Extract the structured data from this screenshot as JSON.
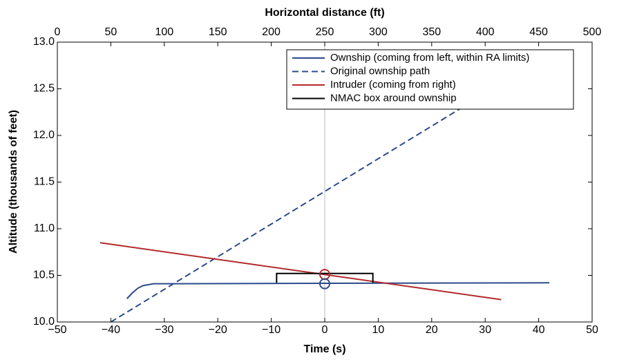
{
  "chart_data": {
    "type": "line",
    "xlabel": "Time (s)",
    "ylabel": "Altitude (thousands of feet)",
    "x2label": "Horizontal distance (ft)",
    "xlim": [
      -50,
      50
    ],
    "xticks": [
      {
        "value": -50,
        "label": "−50"
      },
      {
        "value": -40,
        "label": "−40"
      },
      {
        "value": -30,
        "label": "−30"
      },
      {
        "value": -20,
        "label": "−20"
      },
      {
        "value": -10,
        "label": "−10"
      },
      0,
      10,
      20,
      30,
      40,
      50
    ],
    "x2lim": [
      0,
      500
    ],
    "x2ticks": [
      0,
      50,
      100,
      150,
      200,
      250,
      300,
      350,
      400,
      450,
      500
    ],
    "ylim": [
      10.0,
      13.0
    ],
    "yticks": [
      {
        "value": 10.0,
        "label": "10.0"
      },
      10.5,
      {
        "value": 11.0,
        "label": "11.0"
      },
      11.5,
      {
        "value": 12.0,
        "label": "12.0"
      },
      12.5,
      {
        "value": 13.0,
        "label": "13.0"
      }
    ],
    "legend": "upper right",
    "series": [
      {
        "name": "Ownship (coming from left, within RA limits)",
        "color": "#2b4a8b",
        "dash": false,
        "x": [
          -37,
          -36,
          -35,
          -34,
          -33,
          -32,
          -31,
          -30,
          0,
          42
        ],
        "values": [
          10.25,
          10.31,
          10.36,
          10.39,
          10.4,
          10.41,
          10.41,
          10.41,
          10.415,
          10.42
        ]
      },
      {
        "name": "Original ownship path",
        "color": "#2b4a8b",
        "dash": true,
        "x": [
          -40,
          34
        ],
        "values": [
          10.0,
          12.59
        ]
      },
      {
        "name": "Intruder (coming from right)",
        "color": "#b22a2a",
        "dash": false,
        "x": [
          -42,
          33
        ],
        "values": [
          10.85,
          10.24
        ]
      },
      {
        "name": "NMAC box around ownship",
        "color": "#000000",
        "dash": false,
        "x": [
          -9,
          -9,
          9,
          9
        ],
        "values": [
          10.42,
          10.52,
          10.52,
          10.42
        ]
      }
    ],
    "markers": [
      {
        "x": 0,
        "y": 10.51,
        "color": "#b22a2a"
      },
      {
        "x": 0,
        "y": 10.41,
        "color": "#2b4a8b"
      }
    ],
    "vline": {
      "x": 0,
      "color": "#bbbbbb"
    }
  }
}
